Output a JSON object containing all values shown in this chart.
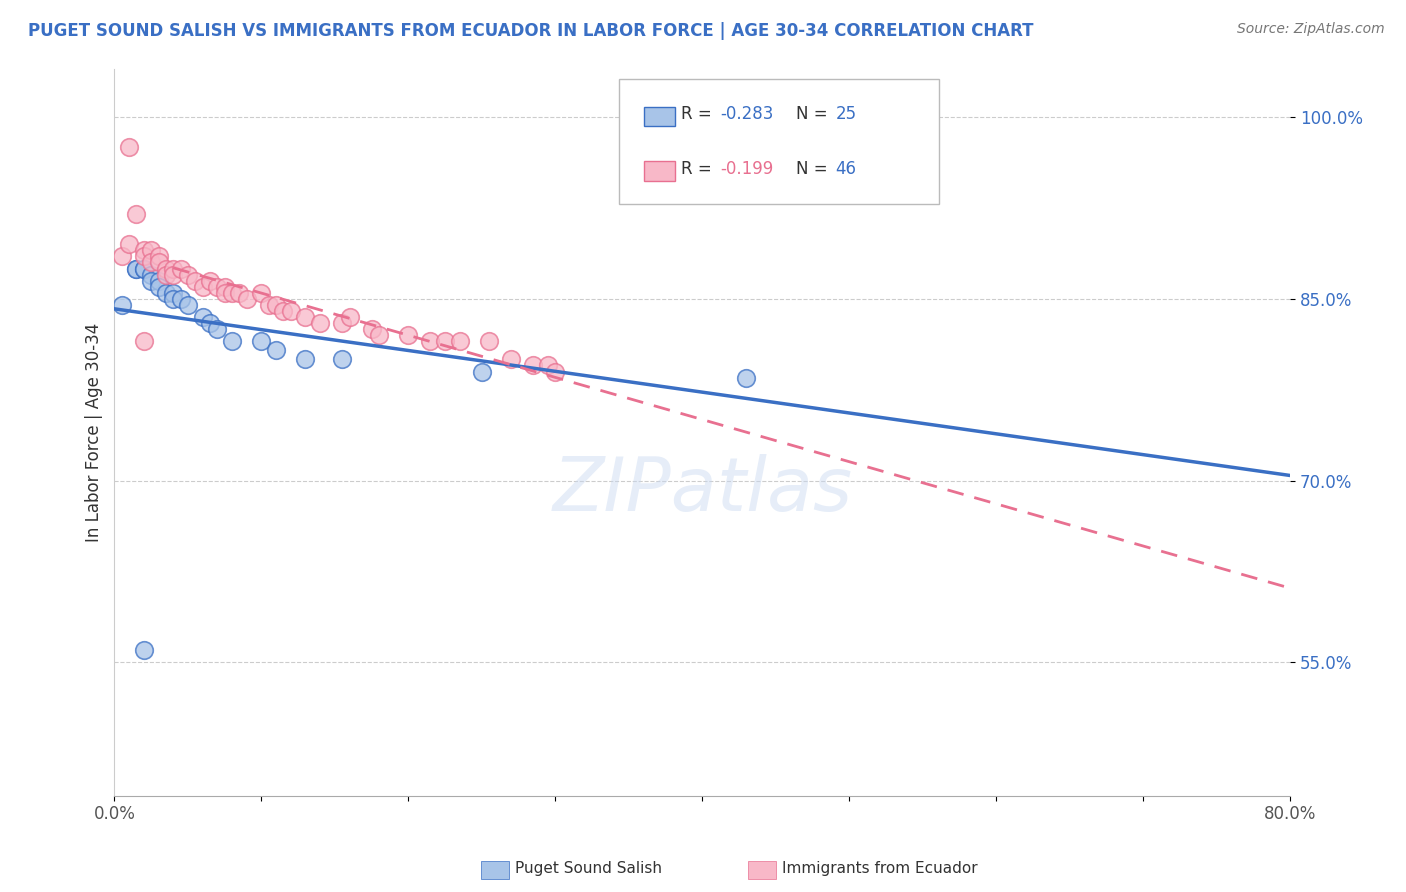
{
  "title": "PUGET SOUND SALISH VS IMMIGRANTS FROM ECUADOR IN LABOR FORCE | AGE 30-34 CORRELATION CHART",
  "source": "Source: ZipAtlas.com",
  "ylabel": "In Labor Force | Age 30-34",
  "xlim": [
    0.0,
    0.8
  ],
  "ylim": [
    0.44,
    1.04
  ],
  "xticks": [
    0.0,
    0.1,
    0.2,
    0.3,
    0.4,
    0.5,
    0.6,
    0.7,
    0.8
  ],
  "xticklabels": [
    "0.0%",
    "",
    "",
    "",
    "",
    "",
    "",
    "",
    "80.0%"
  ],
  "ytick_positions": [
    0.55,
    0.7,
    0.85,
    1.0
  ],
  "ytick_labels": [
    "55.0%",
    "70.0%",
    "85.0%",
    "100.0%"
  ],
  "series1_name": "Puget Sound Salish",
  "series1_color": "#a8c4e8",
  "series1_R": -0.283,
  "series1_N": 25,
  "series1_x": [
    0.005,
    0.015,
    0.015,
    0.02,
    0.02,
    0.025,
    0.025,
    0.03,
    0.03,
    0.035,
    0.04,
    0.04,
    0.045,
    0.05,
    0.06,
    0.065,
    0.07,
    0.08,
    0.1,
    0.11,
    0.13,
    0.155,
    0.25,
    0.43,
    0.02
  ],
  "series1_y": [
    0.845,
    0.875,
    0.875,
    0.875,
    0.875,
    0.87,
    0.865,
    0.865,
    0.86,
    0.855,
    0.855,
    0.85,
    0.85,
    0.845,
    0.835,
    0.83,
    0.825,
    0.815,
    0.815,
    0.808,
    0.8,
    0.8,
    0.79,
    0.785,
    0.56
  ],
  "series2_name": "Immigrants from Ecuador",
  "series2_color": "#f8b8c8",
  "series2_R": -0.199,
  "series2_N": 46,
  "series2_x": [
    0.005,
    0.01,
    0.015,
    0.02,
    0.02,
    0.025,
    0.025,
    0.03,
    0.03,
    0.035,
    0.035,
    0.04,
    0.04,
    0.045,
    0.05,
    0.055,
    0.06,
    0.065,
    0.07,
    0.075,
    0.075,
    0.08,
    0.085,
    0.09,
    0.1,
    0.105,
    0.11,
    0.115,
    0.12,
    0.13,
    0.14,
    0.155,
    0.16,
    0.175,
    0.18,
    0.2,
    0.215,
    0.225,
    0.235,
    0.255,
    0.27,
    0.285,
    0.295,
    0.3,
    0.01,
    0.02
  ],
  "series2_y": [
    0.885,
    0.895,
    0.92,
    0.89,
    0.885,
    0.89,
    0.88,
    0.885,
    0.88,
    0.875,
    0.87,
    0.875,
    0.87,
    0.875,
    0.87,
    0.865,
    0.86,
    0.865,
    0.86,
    0.86,
    0.855,
    0.855,
    0.855,
    0.85,
    0.855,
    0.845,
    0.845,
    0.84,
    0.84,
    0.835,
    0.83,
    0.83,
    0.835,
    0.825,
    0.82,
    0.82,
    0.815,
    0.815,
    0.815,
    0.815,
    0.8,
    0.795,
    0.795,
    0.79,
    0.975,
    0.815
  ],
  "line1_color": "#3a6fc4",
  "line2_color": "#e87090",
  "watermark": "ZIPatlas",
  "background_color": "#ffffff",
  "grid_color": "#cccccc",
  "title_color": "#3a6fc4"
}
